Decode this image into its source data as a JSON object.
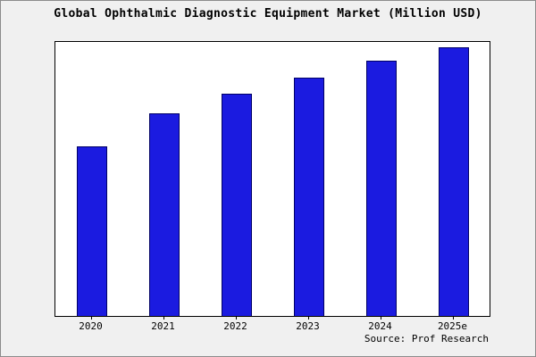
{
  "title": "Global Ophthalmic Diagnostic Equipment Market (Million USD)",
  "source": "Source: Prof Research",
  "colors": {
    "bar_fill": "#1b1be0",
    "bar_border": "#000066",
    "plot_background": "#ffffff",
    "page_background": "#f0f0f0",
    "axis": "#000000"
  },
  "chart_data": {
    "type": "bar",
    "title": "Global Ophthalmic Diagnostic Equipment Market (Million USD)",
    "categories": [
      "2020",
      "2021",
      "2022",
      "2023",
      "2024",
      "2025e"
    ],
    "values": [
      62,
      74,
      81,
      87,
      93,
      98
    ],
    "xlabel": "",
    "ylabel": "",
    "ylim": [
      0,
      100
    ],
    "grid": false,
    "legend": false,
    "y_axis_labels_visible": false,
    "bar_color": "#1b1be0",
    "bar_border_color": "#000066"
  }
}
